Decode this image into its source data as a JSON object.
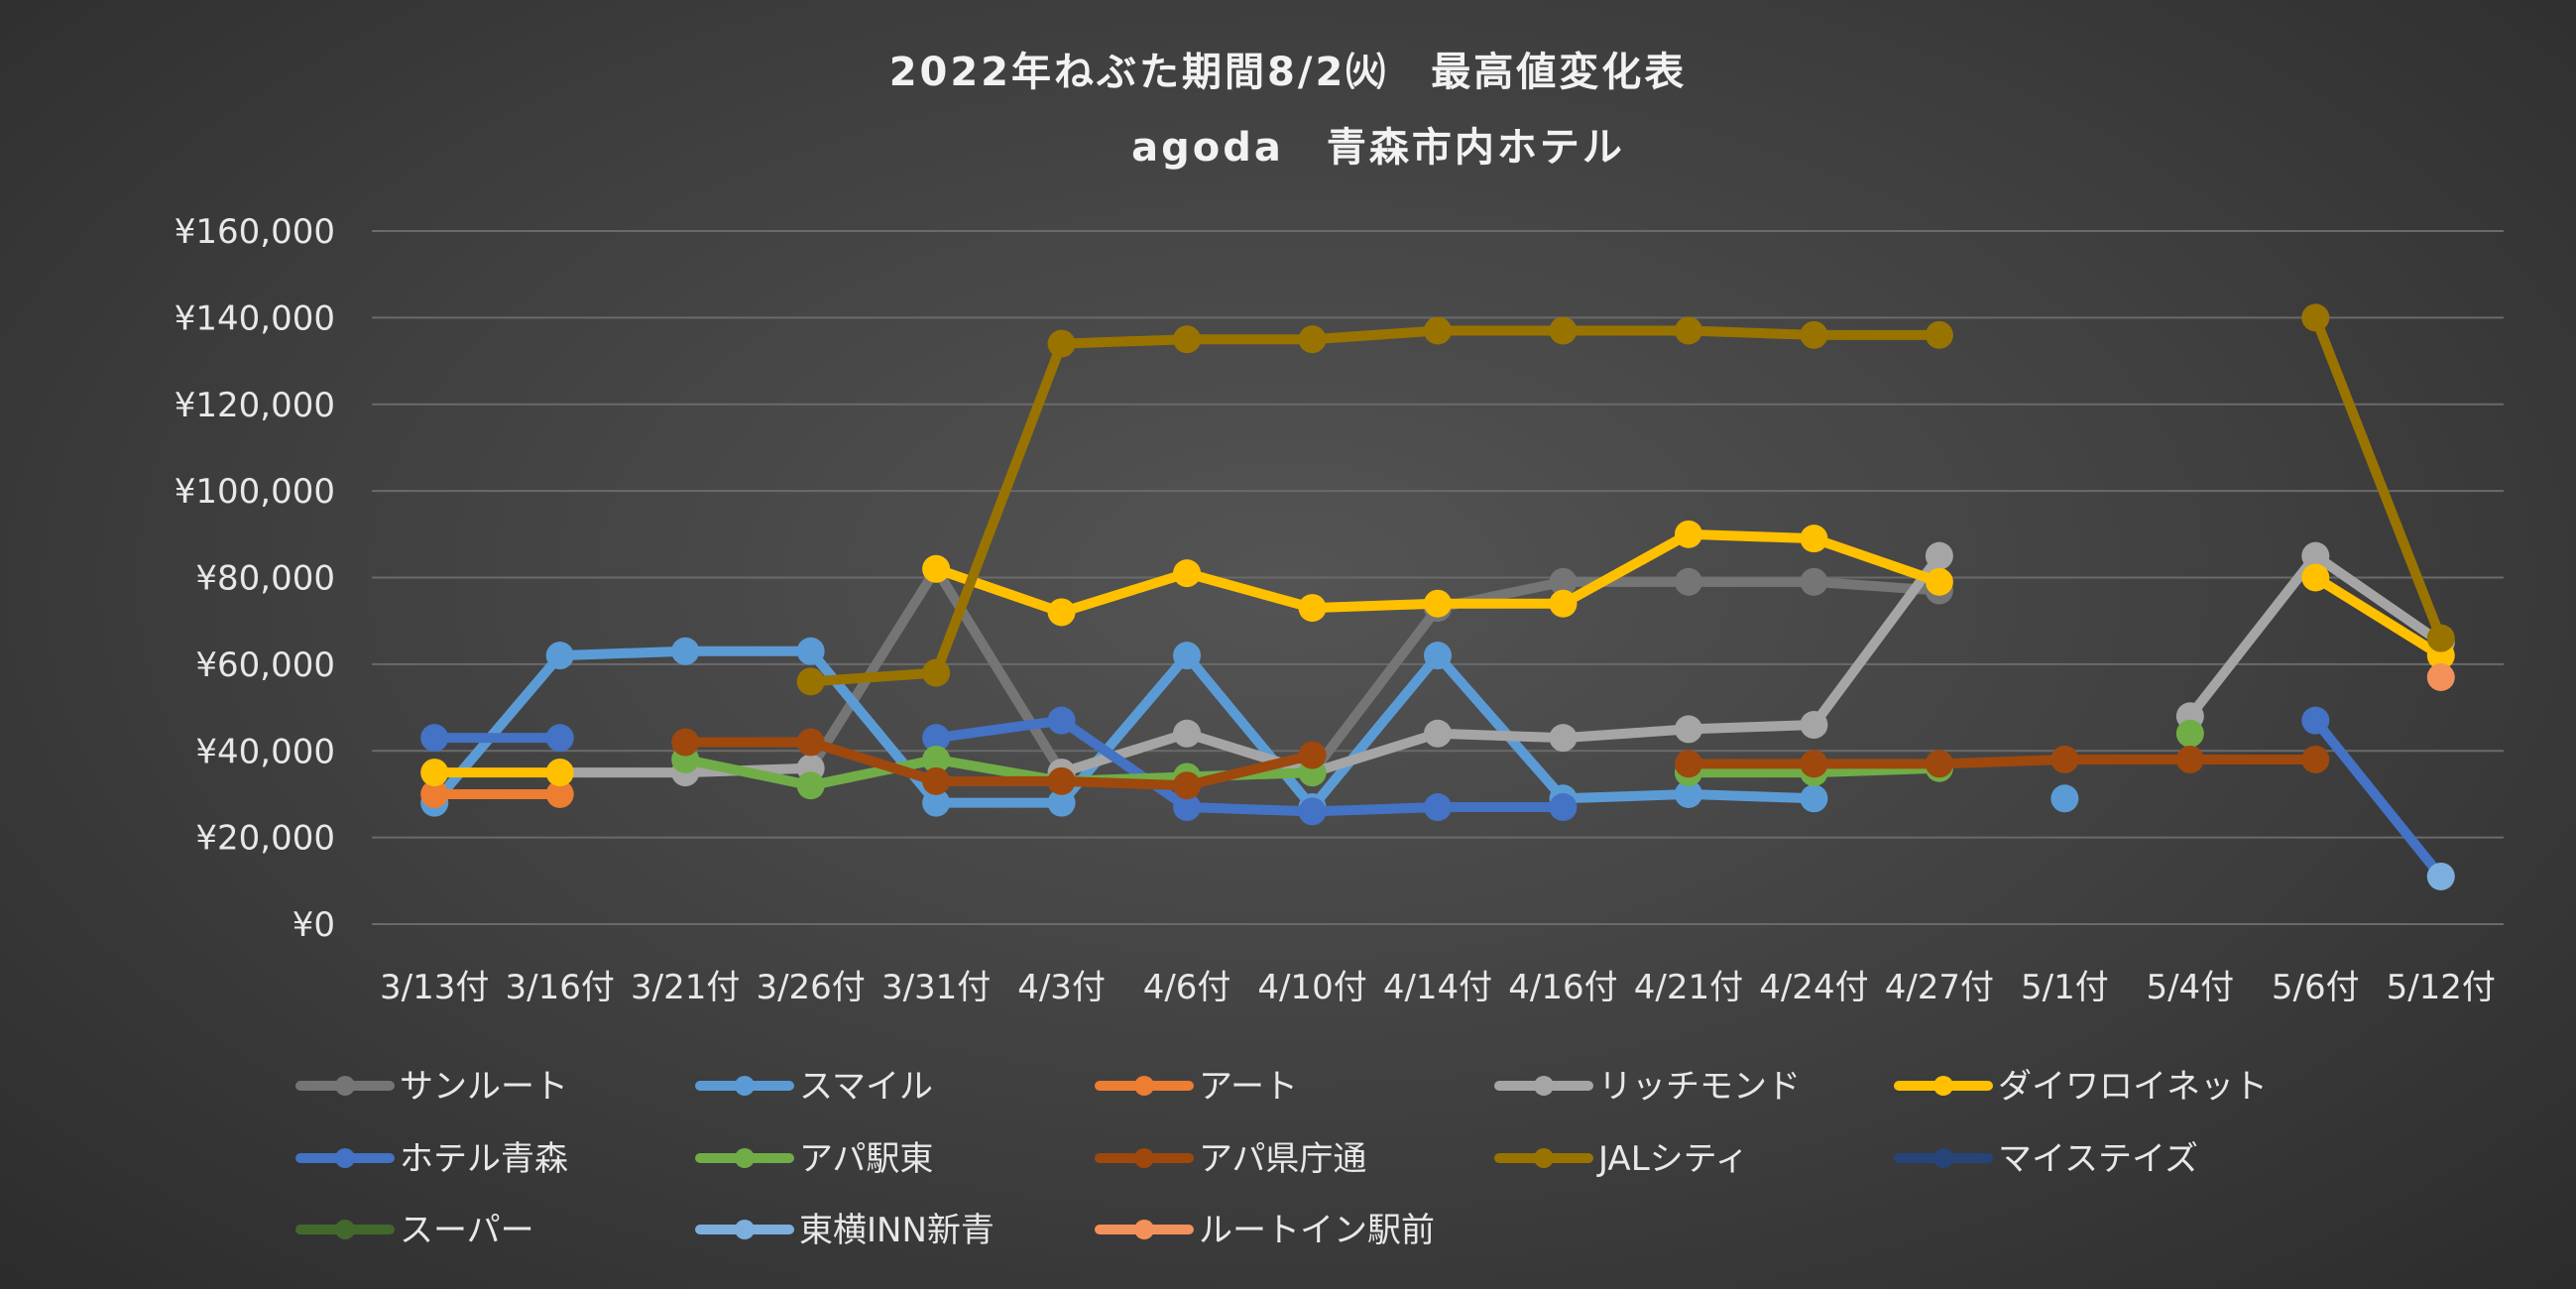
{
  "chart_data": {
    "type": "line",
    "title": "2022年ねぶた期間8/2㈫　最高値変化表",
    "subtitle": "agoda　青森市内ホテル",
    "xlabel": "",
    "ylabel": "",
    "ylim": [
      0,
      160000
    ],
    "yticks": [
      0,
      20000,
      40000,
      60000,
      80000,
      100000,
      120000,
      140000,
      160000
    ],
    "ytick_labels": [
      "¥0",
      "¥20,000",
      "¥40,000",
      "¥60,000",
      "¥80,000",
      "¥100,000",
      "¥120,000",
      "¥140,000",
      "¥160,000"
    ],
    "categories": [
      "3/13付",
      "3/16付",
      "3/21付",
      "3/26付",
      "3/31付",
      "4/3付",
      "4/6付",
      "4/10付",
      "4/14付",
      "4/16付",
      "4/21付",
      "4/24付",
      "4/27付",
      "5/1付",
      "5/4付",
      "5/6付",
      "5/12付"
    ],
    "grid": true,
    "legend_position": "bottom",
    "series": [
      {
        "name": "サンルート",
        "color": "#757575",
        "values": [
          null,
          35000,
          35000,
          36000,
          82000,
          35000,
          44000,
          35000,
          73000,
          79000,
          79000,
          79000,
          77000,
          null,
          null,
          null,
          null
        ]
      },
      {
        "name": "スマイル",
        "color": "#5b9bd5",
        "values": [
          28000,
          62000,
          63000,
          63000,
          28000,
          28000,
          62000,
          27000,
          62000,
          29000,
          30000,
          29000,
          null,
          29000,
          null,
          null,
          null
        ]
      },
      {
        "name": "アート",
        "color": "#ed7d31",
        "values": [
          30000,
          30000,
          null,
          null,
          null,
          null,
          null,
          null,
          null,
          null,
          null,
          null,
          null,
          null,
          null,
          null,
          null
        ]
      },
      {
        "name": "リッチモンド",
        "color": "#a5a5a5",
        "values": [
          null,
          35000,
          35000,
          36000,
          null,
          35000,
          44000,
          35000,
          44000,
          43000,
          45000,
          46000,
          85000,
          null,
          48000,
          85000,
          65000
        ]
      },
      {
        "name": "ダイワロイネット",
        "color": "#ffc000",
        "values": [
          35000,
          35000,
          null,
          null,
          82000,
          72000,
          81000,
          73000,
          74000,
          74000,
          90000,
          89000,
          79000,
          null,
          null,
          80000,
          62000
        ]
      },
      {
        "name": "ホテル青森",
        "color": "#4472c4",
        "values": [
          43000,
          43000,
          null,
          null,
          43000,
          47000,
          27000,
          26000,
          27000,
          27000,
          null,
          null,
          null,
          null,
          null,
          47000,
          11000
        ]
      },
      {
        "name": "アパ駅東",
        "color": "#70ad47",
        "values": [
          null,
          null,
          38000,
          32000,
          38000,
          33000,
          34000,
          35000,
          null,
          null,
          35000,
          35000,
          36000,
          null,
          44000,
          null,
          null
        ]
      },
      {
        "name": "アパ県庁通",
        "color": "#9e480e",
        "values": [
          null,
          null,
          42000,
          42000,
          33000,
          33000,
          32000,
          39000,
          null,
          null,
          37000,
          37000,
          37000,
          38000,
          38000,
          38000,
          null
        ]
      },
      {
        "name": "JALシティ",
        "color": "#997300",
        "values": [
          null,
          null,
          null,
          56000,
          58000,
          134000,
          135000,
          135000,
          137000,
          137000,
          137000,
          136000,
          136000,
          null,
          null,
          140000,
          66000
        ]
      },
      {
        "name": "マイステイズ",
        "color": "#264478",
        "values": [
          null,
          null,
          null,
          null,
          null,
          null,
          null,
          null,
          null,
          null,
          null,
          null,
          null,
          null,
          null,
          null,
          11000
        ]
      },
      {
        "name": "スーパー",
        "color": "#43682b",
        "values": [
          null,
          null,
          null,
          null,
          null,
          null,
          null,
          null,
          null,
          null,
          null,
          null,
          null,
          null,
          null,
          null,
          null
        ]
      },
      {
        "name": "東横INN新青",
        "color": "#7cafdd",
        "values": [
          null,
          null,
          null,
          null,
          null,
          null,
          null,
          null,
          null,
          null,
          null,
          null,
          null,
          null,
          null,
          null,
          11000
        ]
      },
      {
        "name": "ルートイン駅前",
        "color": "#f4915a",
        "values": [
          null,
          null,
          null,
          null,
          null,
          null,
          null,
          null,
          null,
          null,
          null,
          null,
          null,
          null,
          null,
          null,
          57000
        ]
      }
    ]
  }
}
